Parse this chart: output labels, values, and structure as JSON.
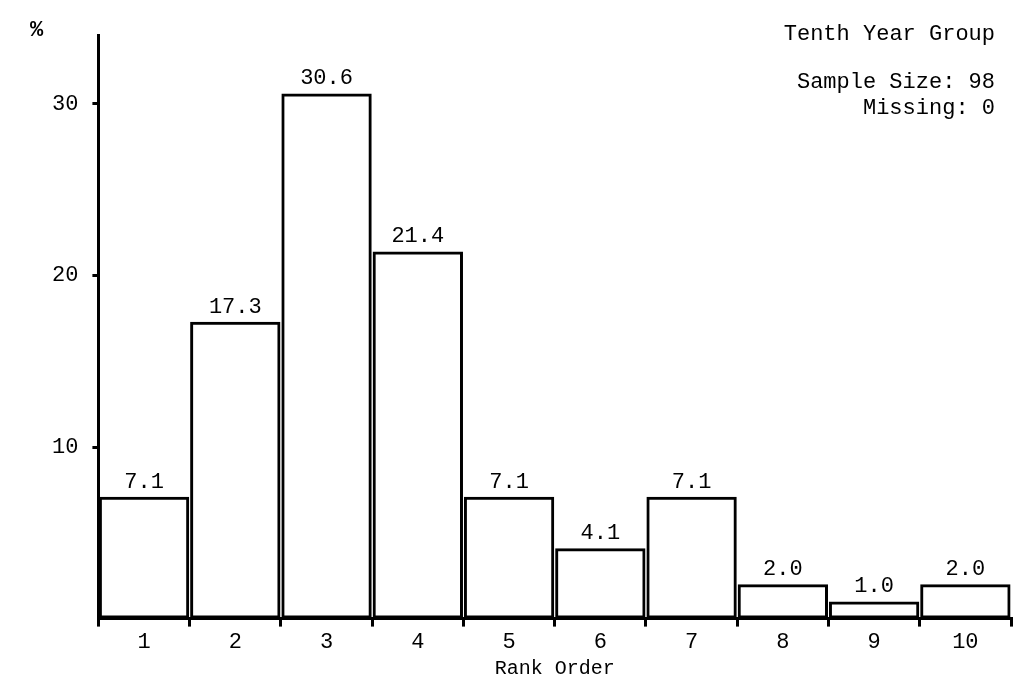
{
  "chart_data": {
    "type": "bar",
    "xlabel": "Rank Order",
    "ylabel": "%",
    "categories": [
      "1",
      "2",
      "3",
      "4",
      "5",
      "6",
      "7",
      "8",
      "9",
      "10"
    ],
    "values": [
      7.1,
      17.3,
      30.6,
      21.4,
      7.1,
      4.1,
      7.1,
      2.0,
      1.0,
      2.0
    ],
    "value_labels": [
      "7.1",
      "17.3",
      "30.6",
      "21.4",
      "7.1",
      "4.1",
      "7.1",
      "2.0",
      "1.0",
      "2.0"
    ],
    "color": "#000000",
    "ylim": [
      0,
      34
    ],
    "yticks": [
      10,
      20,
      30
    ],
    "grid": false,
    "legend": false,
    "annotations": [
      "Tenth Year Group",
      "Sample Size: 98",
      "Missing: 0"
    ]
  }
}
